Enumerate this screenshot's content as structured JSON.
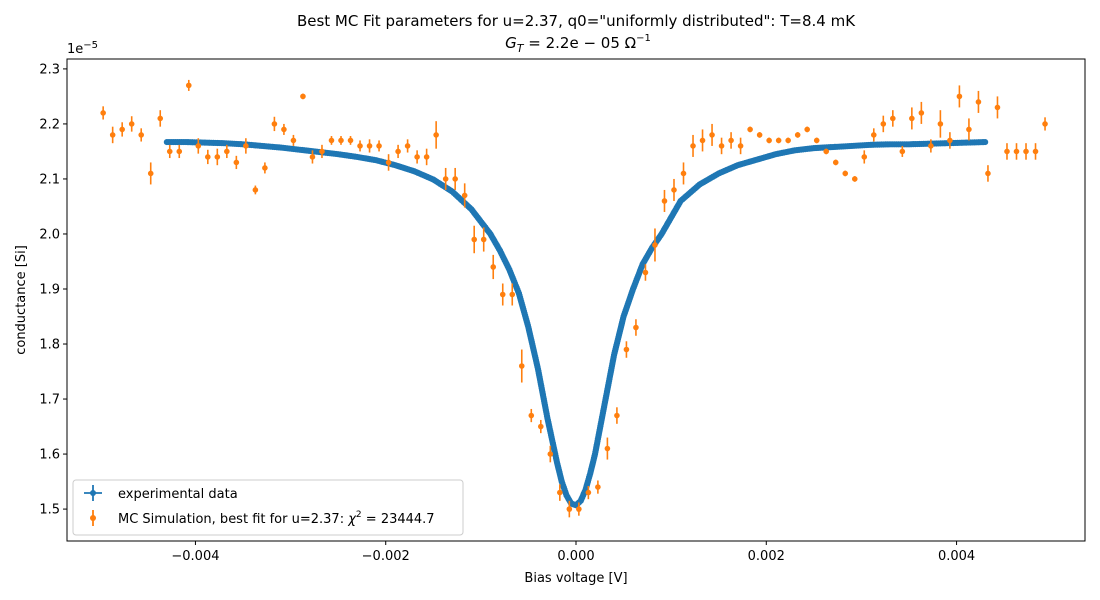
{
  "chart_data": {
    "type": "scatter",
    "title": "Best MC Fit parameters for u=2.37, q0=\"uniformly distributed\":  T=8.4 mK",
    "subtitle_main": "G",
    "subtitle_sub": "T",
    "subtitle_rest": " = 2.2e − 05 Ω",
    "subtitle_sup": "−1",
    "xlabel": "Bias voltage [V]",
    "ylabel": "conductance [Si]",
    "y_offset_main": "1e",
    "y_offset_sup": "−5",
    "xlim": [
      -0.00535,
      0.00535
    ],
    "ylim": [
      1.442,
      2.318
    ],
    "x_ticks": [
      -0.004,
      -0.002,
      0.0,
      0.002,
      0.004
    ],
    "x_tick_labels": [
      "−0.004",
      "−0.002",
      "0.000",
      "0.002",
      "0.004"
    ],
    "y_ticks": [
      1.5,
      1.6,
      1.7,
      1.8,
      1.9,
      2.0,
      2.1,
      2.2,
      2.3
    ],
    "y_tick_labels": [
      "1.5",
      "1.6",
      "1.7",
      "1.8",
      "1.9",
      "2.0",
      "2.1",
      "2.2",
      "2.3"
    ],
    "legend_position": "lower-left",
    "legend": [
      {
        "label_main": "experimental data",
        "color": "#1f77b4"
      },
      {
        "label_main": "MC Simulation, best fit for u=2.37:  ",
        "label_chi": "χ",
        "label_sup": "2",
        "label_rest": " = 23444.7",
        "color": "#ff7f0e"
      }
    ],
    "series": [
      {
        "name": "experimental data",
        "color": "#1f77b4",
        "x": [
          -0.0043,
          -0.0041,
          -0.0039,
          -0.0037,
          -0.0035,
          -0.0033,
          -0.0031,
          -0.0029,
          -0.0027,
          -0.0025,
          -0.0023,
          -0.0021,
          -0.0019,
          -0.0017,
          -0.0015,
          -0.0013,
          -0.0011,
          -0.0009,
          -0.0008,
          -0.0007,
          -0.0006,
          -0.0005,
          -0.0004,
          -0.0003,
          -0.0002,
          -0.00015,
          -0.0001,
          -5e-05,
          0.0,
          5e-05,
          0.0001,
          0.00015,
          0.0002,
          0.0003,
          0.0004,
          0.0005,
          0.0006,
          0.0007,
          0.0008,
          0.0009,
          0.0011,
          0.0013,
          0.0015,
          0.0017,
          0.0019,
          0.0021,
          0.0023,
          0.0025,
          0.0027,
          0.0029,
          0.0031,
          0.0033,
          0.0035,
          0.0037,
          0.0039,
          0.0041,
          0.0043
        ],
        "y": [
          2.167,
          2.167,
          2.166,
          2.165,
          2.163,
          2.16,
          2.157,
          2.153,
          2.149,
          2.145,
          2.14,
          2.134,
          2.125,
          2.114,
          2.099,
          2.077,
          2.045,
          2.0,
          1.97,
          1.935,
          1.892,
          1.83,
          1.755,
          1.665,
          1.585,
          1.55,
          1.525,
          1.51,
          1.507,
          1.515,
          1.535,
          1.565,
          1.6,
          1.69,
          1.78,
          1.85,
          1.9,
          1.945,
          1.975,
          2.0,
          2.06,
          2.09,
          2.11,
          2.125,
          2.135,
          2.145,
          2.152,
          2.156,
          2.158,
          2.16,
          2.162,
          2.163,
          2.163,
          2.164,
          2.165,
          2.166,
          2.167
        ]
      },
      {
        "name": "MC Simulation, best fit for u=2.37:  χ2 = 23444.7",
        "color": "#ff7f0e",
        "x": [
          -0.00497,
          -0.00487,
          -0.00477,
          -0.00467,
          -0.00457,
          -0.00447,
          -0.00437,
          -0.00427,
          -0.00417,
          -0.00407,
          -0.00397,
          -0.00387,
          -0.00377,
          -0.00367,
          -0.00357,
          -0.00347,
          -0.00337,
          -0.00327,
          -0.00317,
          -0.00307,
          -0.00297,
          -0.00287,
          -0.00277,
          -0.00267,
          -0.00257,
          -0.00247,
          -0.00237,
          -0.00227,
          -0.00217,
          -0.00207,
          -0.00197,
          -0.00187,
          -0.00177,
          -0.00167,
          -0.00157,
          -0.00147,
          -0.00137,
          -0.00127,
          -0.00117,
          -0.00107,
          -0.00097,
          -0.00087,
          -0.00077,
          -0.00067,
          -0.00057,
          -0.00047,
          -0.00037,
          -0.00027,
          -0.00017,
          -7e-05,
          3e-05,
          0.00013,
          0.00023,
          0.00033,
          0.00043,
          0.00053,
          0.00063,
          0.00073,
          0.00083,
          0.00093,
          0.00103,
          0.00113,
          0.00123,
          0.00133,
          0.00143,
          0.00153,
          0.00163,
          0.00173,
          0.00183,
          0.00193,
          0.00203,
          0.00213,
          0.00223,
          0.00233,
          0.00243,
          0.00253,
          0.00263,
          0.00273,
          0.00283,
          0.00293,
          0.00303,
          0.00313,
          0.00323,
          0.00333,
          0.00343,
          0.00353,
          0.00363,
          0.00373,
          0.00383,
          0.00393,
          0.00403,
          0.00413,
          0.00423,
          0.00433,
          0.00443,
          0.00453,
          0.00463,
          0.00473,
          0.00483,
          0.00493
        ],
        "y": [
          2.22,
          2.18,
          2.19,
          2.2,
          2.18,
          2.11,
          2.21,
          2.15,
          2.15,
          2.27,
          2.16,
          2.14,
          2.14,
          2.15,
          2.13,
          2.16,
          2.08,
          2.12,
          2.2,
          2.19,
          2.17,
          2.25,
          2.14,
          2.15,
          2.17,
          2.17,
          2.17,
          2.16,
          2.16,
          2.16,
          2.13,
          2.15,
          2.16,
          2.14,
          2.14,
          2.18,
          2.1,
          2.1,
          2.07,
          1.99,
          1.99,
          1.94,
          1.89,
          1.89,
          1.76,
          1.67,
          1.65,
          1.6,
          1.53,
          1.5,
          1.5,
          1.53,
          1.54,
          1.61,
          1.67,
          1.79,
          1.83,
          1.93,
          1.98,
          2.06,
          2.08,
          2.11,
          2.16,
          2.17,
          2.18,
          2.16,
          2.17,
          2.16,
          2.19,
          2.18,
          2.17,
          2.17,
          2.17,
          2.18,
          2.19,
          2.17,
          2.15,
          2.13,
          2.11,
          2.1,
          2.14,
          2.18,
          2.2,
          2.21,
          2.15,
          2.21,
          2.22,
          2.16,
          2.2,
          2.17,
          2.25,
          2.19,
          2.24,
          2.11,
          2.23,
          2.15,
          2.15,
          2.15,
          2.15,
          2.2
        ],
        "yerr": [
          0.012,
          0.015,
          0.013,
          0.014,
          0.012,
          0.02,
          0.015,
          0.012,
          0.012,
          0.01,
          0.014,
          0.013,
          0.015,
          0.012,
          0.012,
          0.014,
          0.008,
          0.01,
          0.013,
          0.01,
          0.01,
          0.005,
          0.012,
          0.012,
          0.008,
          0.008,
          0.008,
          0.01,
          0.012,
          0.01,
          0.015,
          0.012,
          0.012,
          0.012,
          0.015,
          0.025,
          0.02,
          0.02,
          0.022,
          0.025,
          0.022,
          0.022,
          0.02,
          0.02,
          0.03,
          0.012,
          0.012,
          0.015,
          0.015,
          0.015,
          0.012,
          0.012,
          0.012,
          0.02,
          0.015,
          0.015,
          0.015,
          0.015,
          0.03,
          0.02,
          0.02,
          0.02,
          0.02,
          0.02,
          0.02,
          0.015,
          0.015,
          0.015,
          0.005,
          0.005,
          0.005,
          0.005,
          0.005,
          0.005,
          0.005,
          0.005,
          0.005,
          0.005,
          0.005,
          0.005,
          0.012,
          0.012,
          0.015,
          0.015,
          0.01,
          0.02,
          0.02,
          0.012,
          0.025,
          0.015,
          0.02,
          0.02,
          0.02,
          0.015,
          0.02,
          0.015,
          0.015,
          0.015,
          0.015,
          0.012
        ]
      }
    ]
  }
}
